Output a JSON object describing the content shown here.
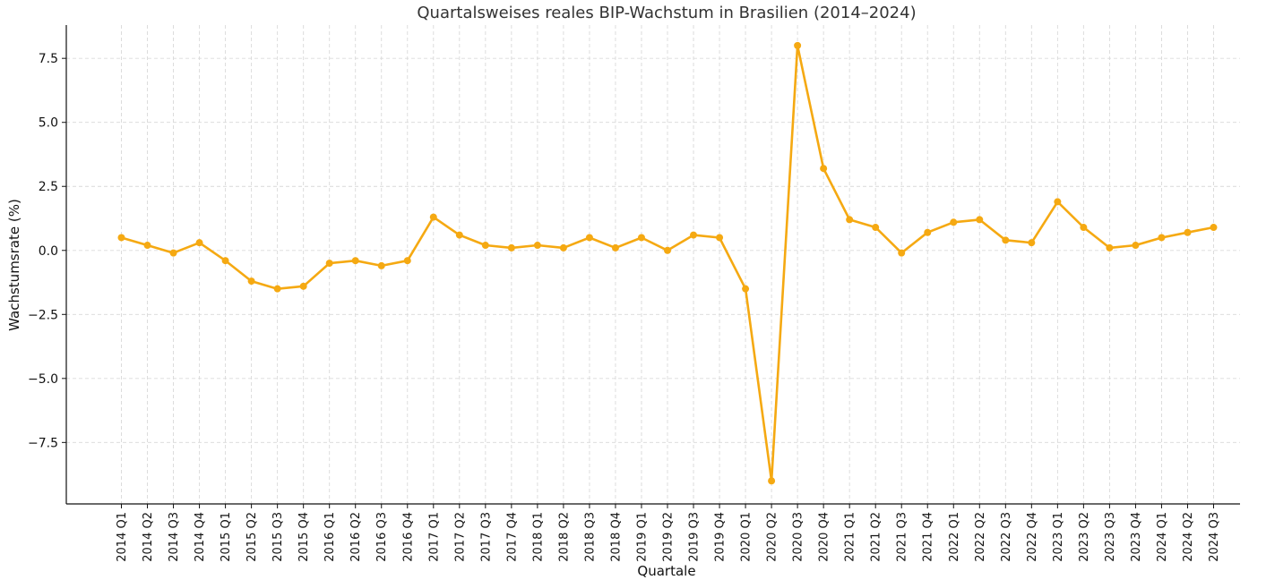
{
  "chart_data": {
    "type": "line",
    "title": "Quartalsweises reales BIP-Wachstum in Brasilien (2014–2024)",
    "xlabel": "Quartale",
    "ylabel": "Wachstumsrate (%)",
    "ylim": [
      -9.9,
      8.8
    ],
    "yticks": [
      7.5,
      5.0,
      2.5,
      0.0,
      -2.5,
      -5.0,
      -7.5
    ],
    "ytick_labels": [
      "7.5",
      "5.0",
      "2.5",
      "0.0",
      "−2.5",
      "−5.0",
      "−7.5"
    ],
    "grid": true,
    "line_color": "#F5A912",
    "categories": [
      "2014 Q1",
      "2014 Q2",
      "2014 Q3",
      "2014 Q4",
      "2015 Q1",
      "2015 Q2",
      "2015 Q3",
      "2015 Q4",
      "2016 Q1",
      "2016 Q2",
      "2016 Q3",
      "2016 Q4",
      "2017 Q1",
      "2017 Q2",
      "2017 Q3",
      "2017 Q4",
      "2018 Q1",
      "2018 Q2",
      "2018 Q3",
      "2018 Q4",
      "2019 Q1",
      "2019 Q2",
      "2019 Q3",
      "2019 Q4",
      "2020 Q1",
      "2020 Q2",
      "2020 Q3",
      "2020 Q4",
      "2021 Q1",
      "2021 Q2",
      "2021 Q3",
      "2021 Q4",
      "2022 Q1",
      "2022 Q2",
      "2022 Q3",
      "2022 Q4",
      "2023 Q1",
      "2023 Q2",
      "2023 Q3",
      "2023 Q4",
      "2024 Q1",
      "2024 Q2",
      "2024 Q3"
    ],
    "values": [
      0.5,
      0.2,
      -0.1,
      0.3,
      -0.4,
      -1.2,
      -1.5,
      -1.4,
      -0.5,
      -0.4,
      -0.6,
      -0.4,
      1.3,
      0.6,
      0.2,
      0.1,
      0.2,
      0.1,
      0.5,
      0.1,
      0.5,
      0.0,
      0.6,
      0.5,
      -1.5,
      -9.0,
      8.0,
      3.2,
      1.2,
      0.9,
      -0.1,
      0.7,
      1.1,
      1.2,
      0.4,
      0.3,
      1.9,
      0.9,
      0.1,
      0.2,
      0.5,
      0.7,
      0.9
    ]
  }
}
